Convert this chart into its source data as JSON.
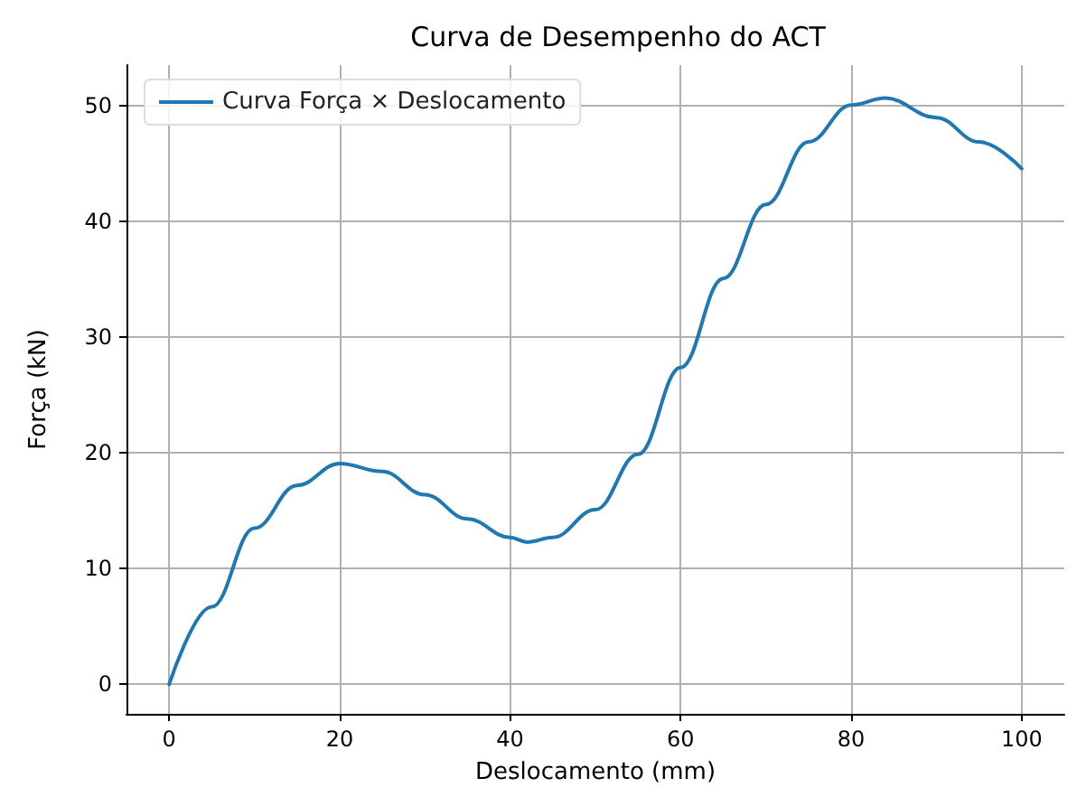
{
  "chart_data": {
    "type": "line",
    "title": "Curva de Desempenho do ACT",
    "xlabel": "Deslocamento (mm)",
    "ylabel": "Força (kN)",
    "x": [
      0,
      5,
      10,
      15,
      20,
      25,
      30,
      35,
      40,
      42,
      45,
      50,
      55,
      60,
      65,
      70,
      75,
      80,
      84,
      90,
      95,
      100
    ],
    "series": [
      {
        "name": "Curva Força × Deslocamento",
        "color": "#1f77b4",
        "values": [
          0,
          6.7,
          13.5,
          17.2,
          19.1,
          18.4,
          16.4,
          14.3,
          12.7,
          12.3,
          12.7,
          15.1,
          19.9,
          27.4,
          35.1,
          41.5,
          46.9,
          50.1,
          50.7,
          49.0,
          46.9,
          44.6
        ]
      }
    ],
    "xlim": [
      -5,
      105
    ],
    "xticks": [
      0,
      20,
      40,
      60,
      80,
      100
    ],
    "ylim": [
      -2.55,
      53.55
    ],
    "yticks": [
      0,
      10,
      20,
      30,
      40,
      50
    ],
    "grid": true,
    "legend": "top left",
    "marker": "none",
    "line_style": "solid"
  }
}
